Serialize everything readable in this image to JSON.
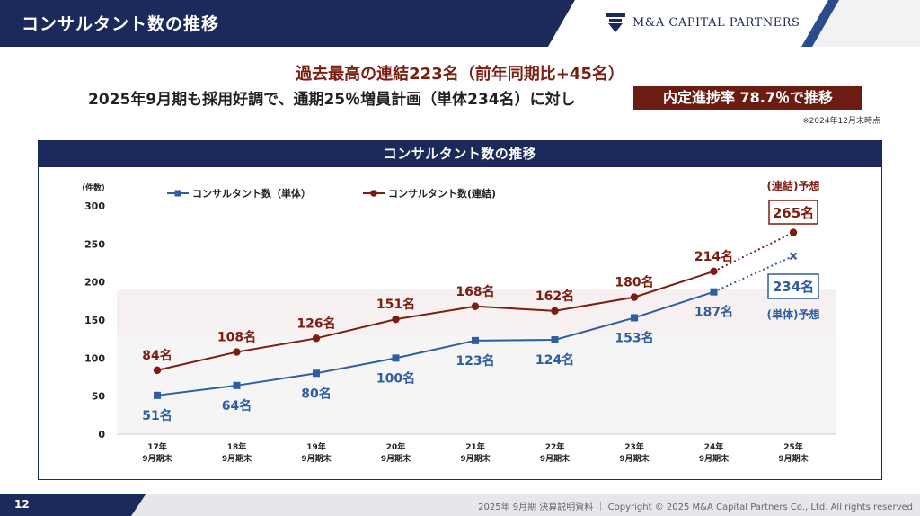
{
  "header": {
    "title": "コンサルタント数の推移",
    "logo_text": "M&A CAPITAL PARTNERS"
  },
  "headline": "過去最高の連結223名（前年同期比+45名）",
  "subline": "2025年9月期も採用好調で、通期25％増員計画（単体234名）に対し",
  "highlight": "内定進捗率 78.7％で推移",
  "note": "※2024年12月末時点",
  "panel_title": "コンサルタント数の推移",
  "footer": {
    "page": "12",
    "copyright": "2025年 9月期 決算説明資料 ｜ Copyright © 2025 M&A Capital Partners Co., Ltd. All rights reserved"
  },
  "colors": {
    "navy": "#1c2a5b",
    "consolidated": "#7b1e12",
    "standalone": "#2f5ea0"
  },
  "chart_data": {
    "type": "line",
    "ylabel": "（件数）",
    "ylim": [
      0,
      300
    ],
    "yticks": [
      0,
      50,
      100,
      150,
      200,
      250,
      300
    ],
    "categories": [
      "17年\n9月期末",
      "18年\n9月期末",
      "19年\n9月期末",
      "20年\n9月期末",
      "21年\n9月期末",
      "22年\n9月期末",
      "23年\n9月期末",
      "24年\n9月期末",
      "25年\n9月期末"
    ],
    "series": [
      {
        "name": "コンサルタント数（単体）",
        "values": [
          51,
          64,
          80,
          100,
          123,
          124,
          153,
          187,
          234
        ],
        "labels": [
          "51名",
          "64名",
          "80名",
          "100名",
          "123名",
          "124名",
          "153名",
          "187名",
          "234名"
        ],
        "color": "#2f5ea0",
        "marker": "square",
        "forecast_from_index": 7
      },
      {
        "name": "コンサルタント数(連結)",
        "values": [
          84,
          108,
          126,
          151,
          168,
          162,
          180,
          214,
          265
        ],
        "labels": [
          "84名",
          "108名",
          "126名",
          "151名",
          "168名",
          "162名",
          "180名",
          "214名",
          "265名"
        ],
        "color": "#7b1e12",
        "marker": "circle",
        "forecast_from_index": 7
      }
    ],
    "annotations": {
      "consolidated_forecast": "(連結)予想",
      "standalone_forecast": "(単体)予想"
    },
    "legend": "top-left"
  }
}
